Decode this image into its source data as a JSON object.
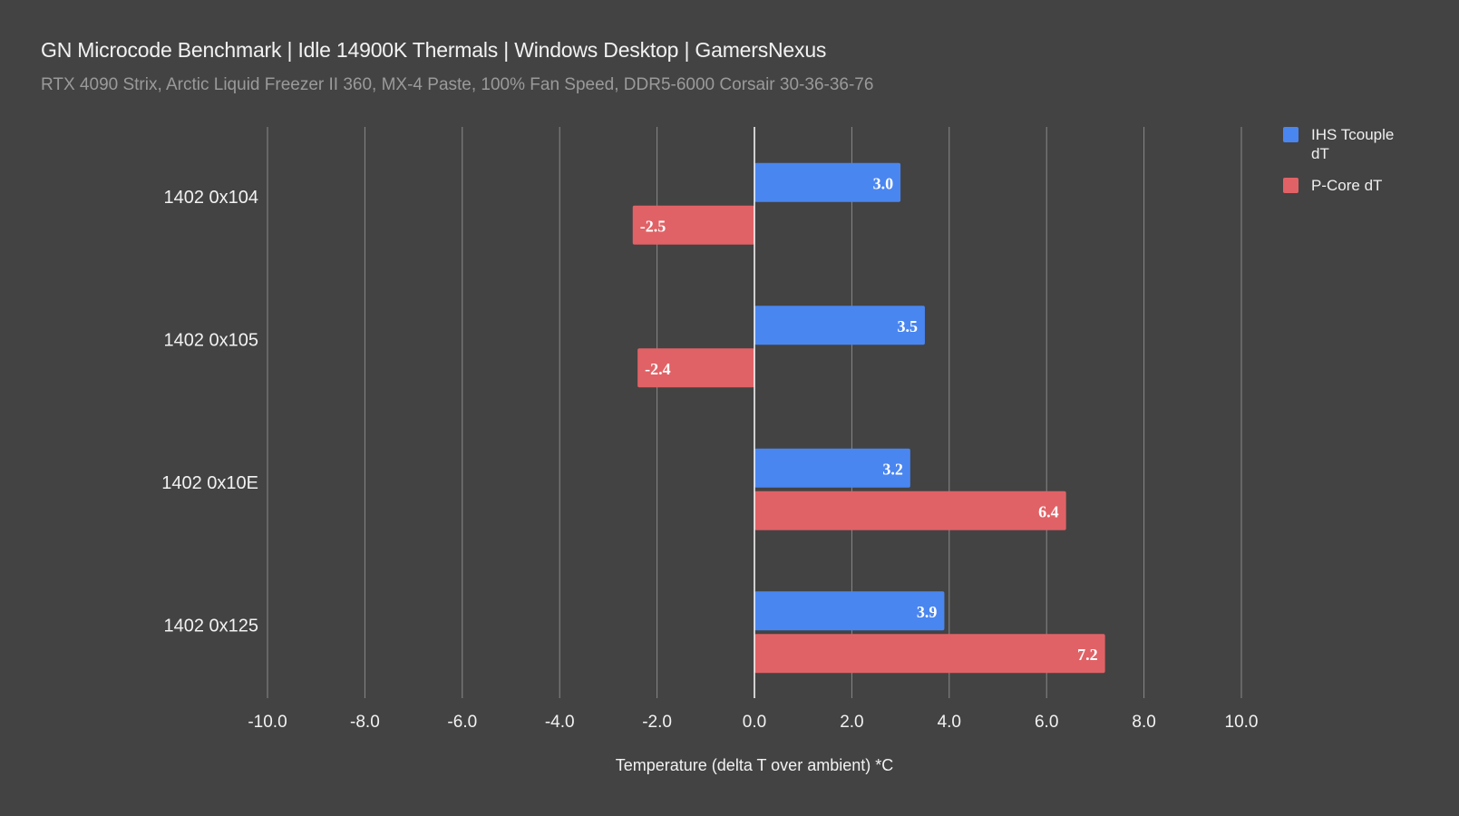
{
  "chart_data": {
    "type": "bar",
    "orientation": "horizontal",
    "title": "GN Microcode Benchmark | Idle 14900K Thermals | Windows Desktop | GamersNexus",
    "subtitle": "RTX 4090 Strix, Arctic Liquid Freezer II 360, MX-4 Paste, 100% Fan Speed, DDR5-6000 Corsair 30-36-36-76",
    "categories": [
      "1402 0x104",
      "1402 0x105",
      "1402 0x10E",
      "1402 0x125"
    ],
    "series": [
      {
        "name": "IHS Tcouple dT",
        "color": "#4a86f0",
        "values": [
          3.0,
          3.5,
          3.2,
          3.9
        ]
      },
      {
        "name": "P-Core dT",
        "color": "#e06266",
        "values": [
          -2.5,
          -2.4,
          6.4,
          7.2
        ]
      }
    ],
    "xlabel": "Temperature (delta T over ambient) *C",
    "ylabel": "",
    "xlim": [
      -10,
      10
    ],
    "xticks": [
      "-10.0",
      "-8.0",
      "-6.0",
      "-4.0",
      "-2.0",
      "0.0",
      "2.0",
      "4.0",
      "6.0",
      "8.0",
      "10.0"
    ],
    "grid": true,
    "legend_position": "top-right"
  },
  "colors": {
    "background": "#434343",
    "gridline": "#8a8a8a",
    "zero_line": "#ffffff",
    "text": "#f2f2f2"
  }
}
